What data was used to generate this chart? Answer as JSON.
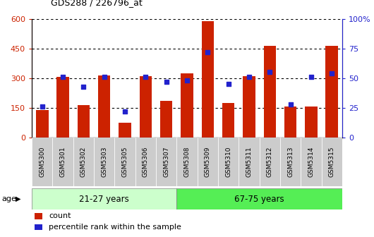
{
  "title": "GDS288 / 226796_at",
  "samples": [
    "GSM5300",
    "GSM5301",
    "GSM5302",
    "GSM5303",
    "GSM5305",
    "GSM5306",
    "GSM5307",
    "GSM5308",
    "GSM5309",
    "GSM5310",
    "GSM5311",
    "GSM5312",
    "GSM5313",
    "GSM5314",
    "GSM5315"
  ],
  "counts": [
    140,
    305,
    165,
    315,
    75,
    310,
    185,
    325,
    590,
    175,
    310,
    465,
    155,
    155,
    465
  ],
  "percentiles": [
    26,
    51,
    43,
    51,
    22,
    51,
    47,
    48,
    72,
    45,
    51,
    55,
    28,
    51,
    54
  ],
  "group1_label": "21-27 years",
  "group2_label": "67-75 years",
  "group1_count": 7,
  "group2_count": 8,
  "ylim_left": [
    0,
    600
  ],
  "ylim_right": [
    0,
    100
  ],
  "yticks_left": [
    0,
    150,
    300,
    450,
    600
  ],
  "yticks_right": [
    0,
    25,
    50,
    75,
    100
  ],
  "bar_color": "#cc2200",
  "dot_color": "#2222cc",
  "group1_color": "#ccffcc",
  "group2_color": "#55ee55",
  "tick_bg": "#cccccc",
  "legend_count_label": "count",
  "legend_pct_label": "percentile rank within the sample",
  "bg_color": "#ffffff"
}
